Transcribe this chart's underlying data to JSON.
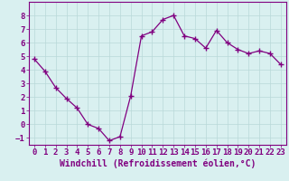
{
  "x": [
    0,
    1,
    2,
    3,
    4,
    5,
    6,
    7,
    8,
    9,
    10,
    11,
    12,
    13,
    14,
    15,
    16,
    17,
    18,
    19,
    20,
    21,
    22,
    23
  ],
  "y": [
    4.8,
    3.9,
    2.7,
    1.9,
    1.2,
    0.0,
    -0.3,
    -1.2,
    -0.9,
    2.1,
    6.5,
    6.8,
    7.7,
    8.0,
    6.5,
    6.3,
    5.6,
    6.9,
    6.0,
    5.5,
    5.2,
    5.4,
    5.2,
    4.4
  ],
  "line_color": "#800080",
  "marker": "+",
  "marker_size": 4,
  "marker_linewidth": 1.0,
  "bg_color": "#d9f0f0",
  "grid_color": "#b8d8d8",
  "xlabel": "Windchill (Refroidissement éolien,°C)",
  "xlabel_color": "#800080",
  "xlabel_fontsize": 7,
  "tick_color": "#800080",
  "tick_fontsize": 6.5,
  "ylim": [
    -1.5,
    9.0
  ],
  "xlim": [
    -0.5,
    23.5
  ],
  "yticks": [
    -1,
    0,
    1,
    2,
    3,
    4,
    5,
    6,
    7,
    8
  ],
  "xticks": [
    0,
    1,
    2,
    3,
    4,
    5,
    6,
    7,
    8,
    9,
    10,
    11,
    12,
    13,
    14,
    15,
    16,
    17,
    18,
    19,
    20,
    21,
    22,
    23
  ],
  "linewidth": 0.9
}
